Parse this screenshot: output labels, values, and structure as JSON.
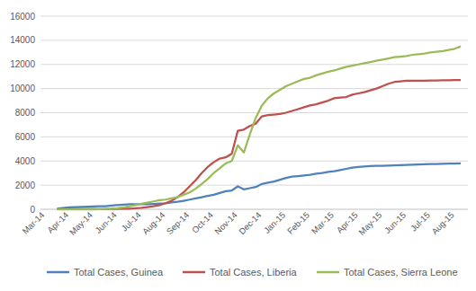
{
  "chart_data": {
    "type": "line",
    "categories": [
      "Mar-14",
      null,
      null,
      null,
      "Apr-14",
      null,
      null,
      null,
      "May-14",
      null,
      null,
      null,
      "Jun-14",
      null,
      null,
      null,
      "Jul-14",
      null,
      null,
      null,
      "Aug-14",
      null,
      null,
      null,
      "Sep-14",
      null,
      null,
      null,
      "Oct-14",
      null,
      null,
      null,
      "Nov-14",
      null,
      null,
      null,
      "Dec-14",
      null,
      null,
      null,
      "Jan-15",
      null,
      null,
      null,
      "Feb-15",
      null,
      null,
      null,
      "Mar-15",
      null,
      null,
      null,
      "Apr-15",
      null,
      null,
      null,
      "May-15",
      null,
      null,
      null,
      "Jun-15",
      null,
      null,
      null,
      "Jul-15",
      null,
      null,
      null,
      "Aug-15",
      null
    ],
    "series": [
      {
        "name": "Total Cases, Guinea",
        "color": "#4f81bd",
        "values": [
          null,
          null,
          50,
          100,
          150,
          180,
          200,
          220,
          240,
          250,
          260,
          300,
          340,
          390,
          410,
          410,
          410,
          420,
          440,
          470,
          500,
          560,
          620,
          700,
          800,
          900,
          1000,
          1100,
          1200,
          1350,
          1500,
          1550,
          1900,
          1650,
          1750,
          1850,
          2100,
          2200,
          2300,
          2450,
          2600,
          2700,
          2750,
          2800,
          2850,
          2950,
          3000,
          3100,
          3150,
          3250,
          3350,
          3450,
          3500,
          3550,
          3580,
          3600,
          3600,
          3620,
          3640,
          3660,
          3680,
          3700,
          3710,
          3730,
          3740,
          3750,
          3760,
          3780,
          3790,
          3800
        ]
      },
      {
        "name": "Total Cases, Liberia",
        "color": "#c0504d",
        "values": [
          null,
          null,
          0,
          10,
          20,
          30,
          30,
          30,
          20,
          15,
          15,
          20,
          30,
          40,
          50,
          80,
          120,
          180,
          250,
          350,
          500,
          700,
          1000,
          1400,
          1900,
          2400,
          3000,
          3500,
          3900,
          4200,
          4300,
          4600,
          6500,
          6600,
          6900,
          7100,
          7700,
          7800,
          7850,
          7900,
          8000,
          8150,
          8300,
          8450,
          8600,
          8700,
          8850,
          9000,
          9200,
          9250,
          9300,
          9500,
          9600,
          9700,
          9850,
          10000,
          10200,
          10400,
          10550,
          10600,
          10650,
          10650,
          10660,
          10660,
          10670,
          10670,
          10680,
          10690,
          10700,
          10700
        ]
      },
      {
        "name": "Total Cases, Sierra Leone",
        "color": "#9bbb59",
        "values": [
          null,
          null,
          0,
          0,
          0,
          0,
          0,
          0,
          0,
          10,
          20,
          40,
          80,
          150,
          250,
          350,
          450,
          550,
          650,
          750,
          800,
          900,
          1000,
          1200,
          1400,
          1700,
          2100,
          2500,
          3000,
          3400,
          3800,
          4000,
          5300,
          4700,
          6200,
          7600,
          8600,
          9200,
          9600,
          9900,
          10200,
          10400,
          10600,
          10800,
          10900,
          11100,
          11250,
          11400,
          11500,
          11650,
          11800,
          11900,
          12000,
          12100,
          12200,
          12300,
          12400,
          12500,
          12600,
          12650,
          12700,
          12800,
          12850,
          12900,
          13000,
          13050,
          13100,
          13200,
          13300,
          13500
        ]
      }
    ],
    "ylim": [
      0,
      16000
    ],
    "yticks": [
      0,
      2000,
      4000,
      6000,
      8000,
      10000,
      12000,
      14000,
      16000
    ],
    "grid": true,
    "legend": "bottom"
  }
}
